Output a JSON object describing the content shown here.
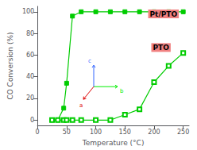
{
  "chart_data": {
    "type": "line",
    "x": [
      25,
      35,
      45,
      50,
      60,
      75,
      100,
      125,
      150,
      175,
      200,
      225,
      250
    ],
    "series": [
      {
        "color": "#00cc00",
        "marker": "filled square",
        "values": [
          0,
          0,
          11,
          34,
          96,
          100,
          100,
          100,
          100,
          100,
          100,
          100,
          100
        ]
      },
      {
        "color": "#00cc00",
        "marker": "open square",
        "values": [
          0,
          0,
          0,
          0,
          0,
          0,
          0,
          0,
          5,
          10,
          35,
          50,
          62
        ]
      }
    ],
    "xlim": [
      0,
      260
    ],
    "ylim": [
      -5,
      105
    ],
    "xticks": [
      0,
      50,
      100,
      150,
      200,
      250
    ],
    "yticks": [
      0,
      20,
      40,
      60,
      80,
      100
    ],
    "xlabel": "Temperature (°C)",
    "ylabel": "CO Conversion (%)",
    "grid": false,
    "annotations": [
      {
        "text": "Pt/PTO",
        "color": "#f08080"
      },
      {
        "text": "PTO",
        "color": "#f08080"
      },
      {
        "text": "b",
        "color": "#00ee00"
      },
      {
        "text": "c",
        "color": "#3366ff"
      },
      {
        "text": "a",
        "color": "#dd0000"
      }
    ]
  }
}
